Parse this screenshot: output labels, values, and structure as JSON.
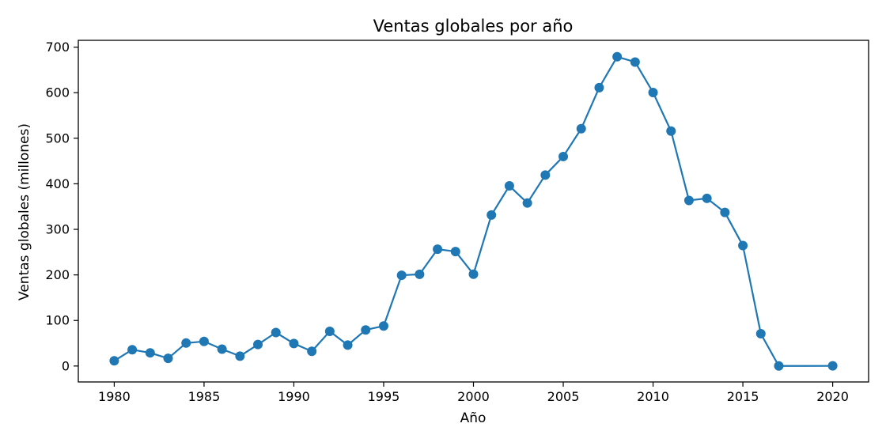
{
  "chart_data": {
    "type": "line",
    "title": "Ventas globales por año",
    "xlabel": "Año",
    "ylabel": "Ventas globales (millones)",
    "xlim": [
      1978,
      2022
    ],
    "ylim": [
      -35,
      715
    ],
    "xticks": [
      1980,
      1985,
      1990,
      1995,
      2000,
      2005,
      2010,
      2015,
      2020
    ],
    "yticks": [
      0,
      100,
      200,
      300,
      400,
      500,
      600,
      700
    ],
    "grid": false,
    "legend": "none",
    "colors": {
      "line": "#1f77b4",
      "marker": "#1f77b4",
      "axes": "#000000"
    },
    "series": [
      {
        "x": [
          1980,
          1981,
          1982,
          1983,
          1984,
          1985,
          1986,
          1987,
          1988,
          1989,
          1990,
          1991,
          1992,
          1993,
          1994,
          1995,
          1996,
          1997,
          1998,
          1999,
          2000,
          2001,
          2002,
          2003,
          2004,
          2005,
          2006,
          2007,
          2008,
          2009,
          2010,
          2011,
          2012,
          2013,
          2014,
          2015,
          2016,
          2017,
          2020
        ],
        "y": [
          11.4,
          35.8,
          28.9,
          16.8,
          50.4,
          53.9,
          37.1,
          21.7,
          47.2,
          73.5,
          49.4,
          32.2,
          76.2,
          45.9,
          79.2,
          87.9,
          199.2,
          201.3,
          256.5,
          251.3,
          201.6,
          331.5,
          395.5,
          357.9,
          419.3,
          459.9,
          521.0,
          611.1,
          678.9,
          667.3,
          600.5,
          515.8,
          363.5,
          368.1,
          337.1,
          264.4,
          70.9,
          0.1,
          0.3
        ]
      }
    ]
  }
}
